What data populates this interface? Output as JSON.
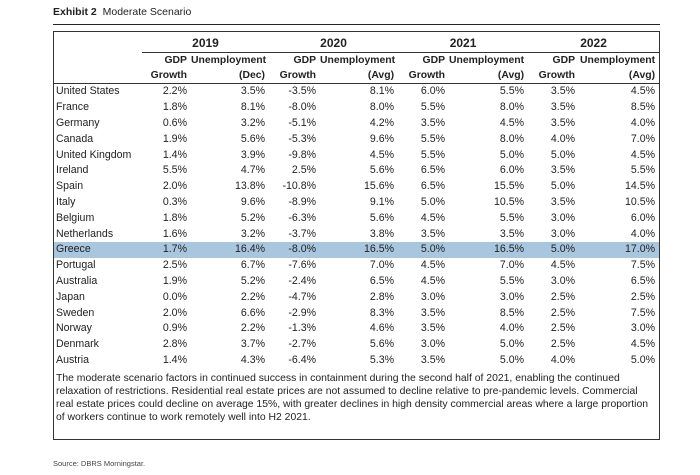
{
  "exhibit": {
    "label": "Exhibit 2",
    "title": "Moderate Scenario"
  },
  "years": [
    {
      "year": "2019",
      "gdp_label": [
        "GDP",
        "Growth"
      ],
      "unemp_label": [
        "Unemployment",
        "(Dec)"
      ]
    },
    {
      "year": "2020",
      "gdp_label": [
        "GDP",
        "Growth"
      ],
      "unemp_label": [
        "Unemployment",
        "(Avg)"
      ]
    },
    {
      "year": "2021",
      "gdp_label": [
        "GDP",
        "Growth"
      ],
      "unemp_label": [
        "Unemployment",
        "(Avg)"
      ]
    },
    {
      "year": "2022",
      "gdp_label": [
        "GDP",
        "Growth"
      ],
      "unemp_label": [
        "Unemployment",
        "(Avg)"
      ]
    }
  ],
  "rows": [
    {
      "country": "United States",
      "values": [
        "2.2%",
        "3.5%",
        "-3.5%",
        "8.1%",
        "6.0%",
        "5.5%",
        "3.5%",
        "4.5%"
      ]
    },
    {
      "country": "France",
      "values": [
        "1.8%",
        "8.1%",
        "-8.0%",
        "8.0%",
        "5.5%",
        "8.0%",
        "3.5%",
        "8.5%"
      ]
    },
    {
      "country": "Germany",
      "values": [
        "0.6%",
        "3.2%",
        "-5.1%",
        "4.2%",
        "3.5%",
        "4.5%",
        "3.5%",
        "4.0%"
      ]
    },
    {
      "country": "Canada",
      "values": [
        "1.9%",
        "5.6%",
        "-5.3%",
        "9.6%",
        "5.5%",
        "8.0%",
        "4.0%",
        "7.0%"
      ]
    },
    {
      "country": "United Kingdom",
      "values": [
        "1.4%",
        "3.9%",
        "-9.8%",
        "4.5%",
        "5.5%",
        "5.0%",
        "5.0%",
        "4.5%"
      ]
    },
    {
      "country": "Ireland",
      "values": [
        "5.5%",
        "4.7%",
        "2.5%",
        "5.6%",
        "6.5%",
        "6.0%",
        "3.5%",
        "5.5%"
      ]
    },
    {
      "country": "Spain",
      "values": [
        "2.0%",
        "13.8%",
        "-10.8%",
        "15.6%",
        "6.5%",
        "15.5%",
        "5.0%",
        "14.5%"
      ]
    },
    {
      "country": "Italy",
      "values": [
        "0.3%",
        "9.6%",
        "-8.9%",
        "9.1%",
        "5.0%",
        "10.5%",
        "3.5%",
        "10.5%"
      ]
    },
    {
      "country": "Belgium",
      "values": [
        "1.8%",
        "5.2%",
        "-6.3%",
        "5.6%",
        "4.5%",
        "5.5%",
        "3.0%",
        "6.0%"
      ]
    },
    {
      "country": "Netherlands",
      "values": [
        "1.6%",
        "3.2%",
        "-3.7%",
        "3.8%",
        "3.5%",
        "3.5%",
        "3.0%",
        "4.0%"
      ]
    },
    {
      "country": "Greece",
      "highlight": true,
      "values": [
        "1.7%",
        "16.4%",
        "-8.0%",
        "16.5%",
        "5.0%",
        "16.5%",
        "5.0%",
        "17.0%"
      ]
    },
    {
      "country": "Portugal",
      "values": [
        "2.5%",
        "6.7%",
        "-7.6%",
        "7.0%",
        "4.5%",
        "7.0%",
        "4.5%",
        "7.5%"
      ]
    },
    {
      "country": "Australia",
      "values": [
        "1.9%",
        "5.2%",
        "-2.4%",
        "6.5%",
        "4.5%",
        "5.5%",
        "3.0%",
        "6.5%"
      ]
    },
    {
      "country": "Japan",
      "values": [
        "0.0%",
        "2.2%",
        "-4.7%",
        "2.8%",
        "3.0%",
        "3.0%",
        "2.5%",
        "2.5%"
      ]
    },
    {
      "country": "Sweden",
      "values": [
        "2.0%",
        "6.6%",
        "-2.9%",
        "8.3%",
        "3.5%",
        "8.5%",
        "2.5%",
        "7.5%"
      ]
    },
    {
      "country": "Norway",
      "values": [
        "0.9%",
        "2.2%",
        "-1.3%",
        "4.6%",
        "3.5%",
        "4.0%",
        "2.5%",
        "3.0%"
      ]
    },
    {
      "country": "Denmark",
      "values": [
        "2.8%",
        "3.7%",
        "-2.7%",
        "5.6%",
        "3.0%",
        "5.0%",
        "2.5%",
        "4.5%"
      ]
    },
    {
      "country": "Austria",
      "values": [
        "1.4%",
        "4.3%",
        "-6.4%",
        "5.3%",
        "3.5%",
        "5.0%",
        "4.0%",
        "5.0%"
      ]
    }
  ],
  "note": "The moderate scenario factors in continued success in containment during the second half of 2021, enabling the continued relaxation of restrictions. Residential real estate prices are not assumed to decline relative to pre-pandemic levels. Commercial real estate prices could decline on average 15%, with greater declines in high density commercial areas where a large proportion of workers continue to work remotely well into H2 2021.",
  "source": "Source: DBRS Morningstar.",
  "colors": {
    "highlight": "#a9c6df",
    "text": "#222222"
  }
}
